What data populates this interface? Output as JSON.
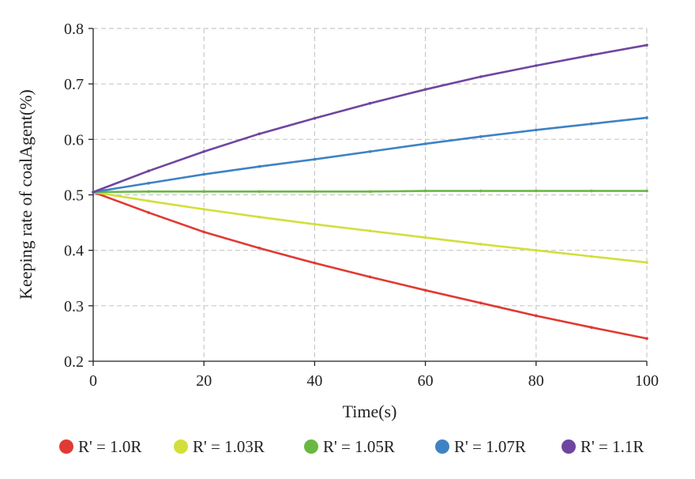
{
  "chart_data": {
    "type": "line",
    "xlabel": "Time(s)",
    "ylabel": "Keeping rate of coalAgent(%)",
    "xlim": [
      0,
      100
    ],
    "ylim": [
      0.2,
      0.8
    ],
    "xticks": [
      0,
      20,
      40,
      60,
      80,
      100
    ],
    "yticks": [
      0.2,
      0.3,
      0.4,
      0.5,
      0.6,
      0.7,
      0.8
    ],
    "x_tick_labels": [
      "0",
      "20",
      "40",
      "60",
      "80",
      "100"
    ],
    "y_tick_labels": [
      "0.2",
      "0.3",
      "0.4",
      "0.5",
      "0.6",
      "0.7",
      "0.8"
    ],
    "grid": true,
    "legend_position": "bottom",
    "x": [
      0,
      10,
      20,
      30,
      40,
      50,
      60,
      70,
      80,
      90,
      100
    ],
    "series": [
      {
        "name": "R' = 1.0R",
        "color": "#e03a33",
        "values": [
          0.505,
          0.468,
          0.433,
          0.404,
          0.377,
          0.352,
          0.328,
          0.305,
          0.282,
          0.261,
          0.241
        ]
      },
      {
        "name": "R' = 1.03R",
        "color": "#d2df3a",
        "values": [
          0.505,
          0.489,
          0.474,
          0.46,
          0.447,
          0.435,
          0.423,
          0.411,
          0.4,
          0.389,
          0.378
        ]
      },
      {
        "name": "R' = 1.05R",
        "color": "#6ab843",
        "values": [
          0.505,
          0.506,
          0.506,
          0.506,
          0.506,
          0.506,
          0.507,
          0.507,
          0.507,
          0.507,
          0.507
        ]
      },
      {
        "name": "R' = 1.07R",
        "color": "#3f82c4",
        "values": [
          0.505,
          0.521,
          0.537,
          0.551,
          0.564,
          0.578,
          0.592,
          0.605,
          0.617,
          0.628,
          0.639
        ]
      },
      {
        "name": "R' = 1.1R",
        "color": "#6e46a0",
        "values": [
          0.505,
          0.543,
          0.578,
          0.61,
          0.638,
          0.665,
          0.69,
          0.713,
          0.733,
          0.752,
          0.77
        ]
      }
    ]
  }
}
